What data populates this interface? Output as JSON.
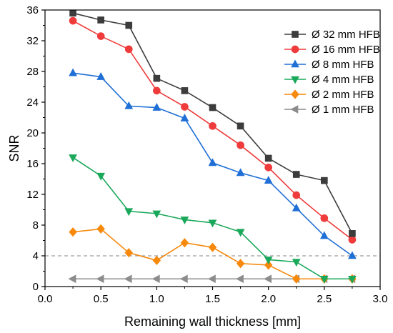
{
  "chart_data": {
    "type": "line",
    "title": "",
    "xlabel": "Remaining wall thickness [mm]",
    "ylabel": "SNR",
    "xlim": [
      0.0,
      3.0
    ],
    "ylim": [
      0,
      36
    ],
    "xticks": [
      0.0,
      0.5,
      1.0,
      1.5,
      2.0,
      2.5,
      3.0
    ],
    "xtick_labels": [
      "0.0",
      "0.5",
      "1.0",
      "1.5",
      "2.0",
      "2.5",
      "3.0"
    ],
    "yticks": [
      0,
      4,
      8,
      12,
      16,
      20,
      24,
      28,
      32,
      36
    ],
    "ytick_labels": [
      "0",
      "4",
      "8",
      "12",
      "16",
      "20",
      "24",
      "28",
      "32",
      "36"
    ],
    "reference_line": {
      "y": 4,
      "style": "dashed",
      "color": "#9e9e9e"
    },
    "legend_position": "top-right",
    "x": [
      0.25,
      0.5,
      0.75,
      1.0,
      1.25,
      1.5,
      1.75,
      2.0,
      2.25,
      2.5,
      2.75
    ],
    "series": [
      {
        "name": "Ø 32 mm HFB",
        "color": "#3c3c3c",
        "marker": "square",
        "values": [
          35.6,
          34.7,
          34.0,
          27.1,
          25.5,
          23.3,
          20.9,
          16.7,
          14.6,
          13.8,
          6.9
        ]
      },
      {
        "name": "Ø 16 mm HFB",
        "color": "#ef3b3b",
        "marker": "circle",
        "values": [
          34.6,
          32.6,
          30.9,
          25.5,
          23.4,
          20.9,
          18.4,
          15.5,
          11.9,
          8.9,
          6.1
        ]
      },
      {
        "name": "Ø 8 mm HFB",
        "color": "#1f6fd6",
        "marker": "triangle-up",
        "values": [
          27.8,
          27.3,
          23.5,
          23.3,
          21.9,
          16.1,
          14.8,
          13.8,
          10.2,
          6.6,
          4.0
        ]
      },
      {
        "name": "Ø 4 mm HFB",
        "color": "#1aa85a",
        "marker": "triangle-down",
        "values": [
          16.8,
          14.4,
          9.8,
          9.5,
          8.7,
          8.3,
          7.1,
          3.5,
          3.2,
          1.0,
          1.0
        ]
      },
      {
        "name": "Ø 2 mm HFB",
        "color": "#f7890d",
        "marker": "diamond",
        "values": [
          7.1,
          7.5,
          4.4,
          3.4,
          5.7,
          5.1,
          3.0,
          2.8,
          1.0,
          1.0,
          1.0
        ]
      },
      {
        "name": "Ø 1 mm HFB",
        "color": "#8c8c8c",
        "marker": "triangle-left",
        "values": [
          1.0,
          1.0,
          1.0,
          1.0,
          1.0,
          1.0,
          1.0,
          1.0,
          1.0,
          1.0,
          1.0
        ]
      }
    ]
  }
}
